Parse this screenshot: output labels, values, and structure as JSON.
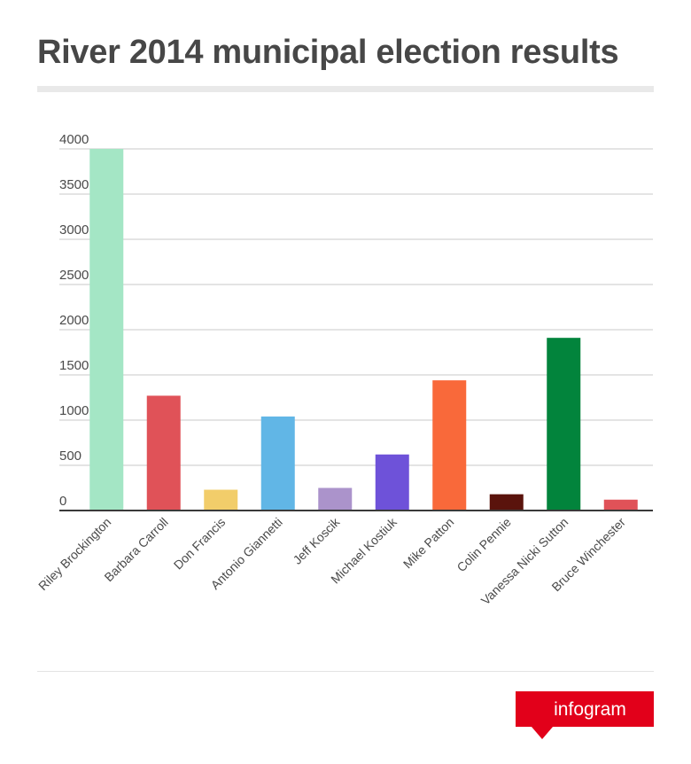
{
  "chart_data": {
    "type": "bar",
    "title": "River 2014 municipal election results",
    "categories": [
      "Riley Brockington",
      "Barbara Carroll",
      "Don Francis",
      "Antonio Giannetti",
      "Jeff Koscik",
      "Michael Kostiuk",
      "Mike Patton",
      "Colin Pennie",
      "Vanessa Nicki Sutton",
      "Bruce Winchester"
    ],
    "values": [
      4000,
      1270,
      230,
      1040,
      250,
      620,
      1440,
      180,
      1910,
      120
    ],
    "colors": [
      "#a4e6c5",
      "#e05258",
      "#f2cd6a",
      "#61b6e6",
      "#ab93cb",
      "#6e52d9",
      "#f9693a",
      "#5a130c",
      "#02843c",
      "#e05258"
    ],
    "yticks": [
      0,
      500,
      1000,
      1500,
      2000,
      2500,
      3000,
      3500,
      4000
    ],
    "ylim": [
      0,
      4000
    ],
    "xlabel": "",
    "ylabel": "",
    "grid": true,
    "legend": "none"
  },
  "branding": {
    "logo_text": "infogram",
    "logo_color": "#e2001a"
  }
}
